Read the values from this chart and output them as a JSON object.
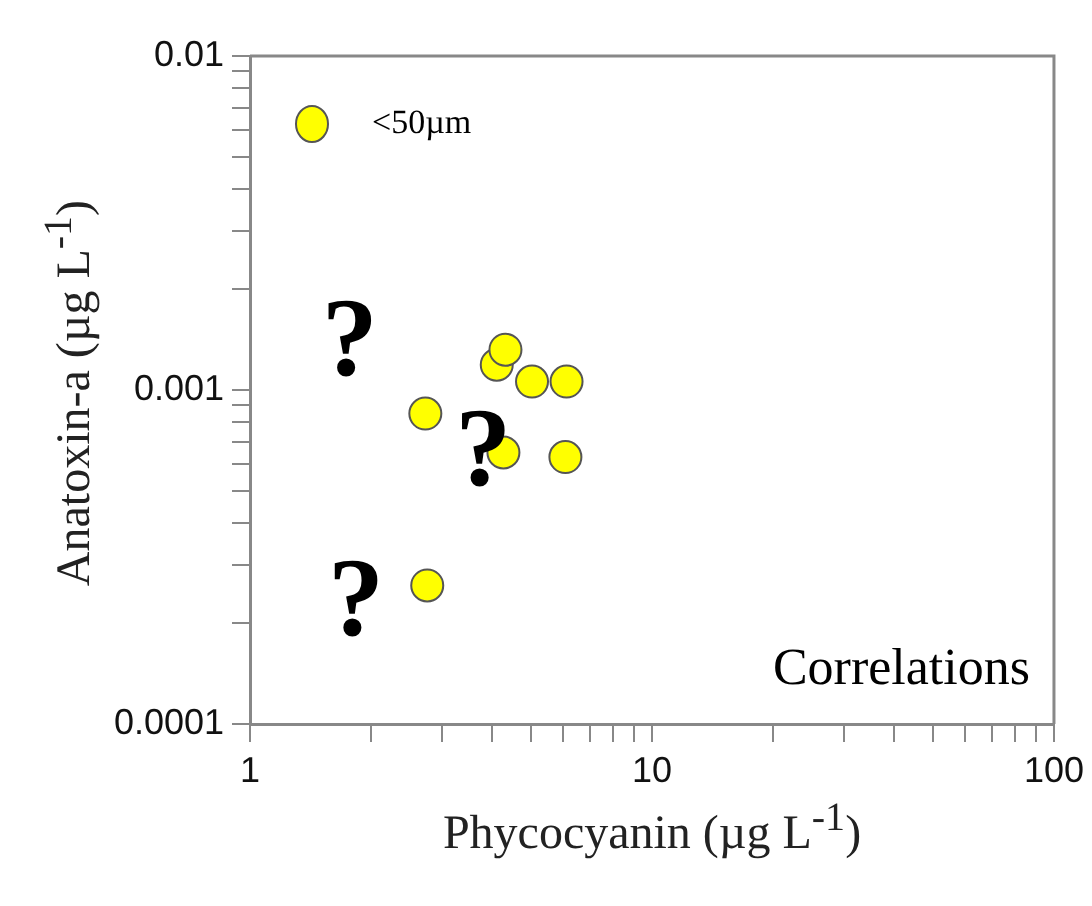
{
  "chart_data": {
    "type": "scatter",
    "xlabel": "Phycocyanin (µg L$^{-1}$)",
    "ylabel": "Anatoxin-a (µg L$^{-1}$)",
    "log": "xy",
    "xlim": [
      1,
      100
    ],
    "ylim": [
      0.0001,
      0.01
    ],
    "xticks": [
      1,
      {
        "value": 2,
        "label": null
      },
      {
        "value": 3,
        "label": null
      },
      {
        "value": 4,
        "label": null
      },
      {
        "value": 5,
        "label": null
      },
      {
        "value": 6,
        "label": null
      },
      {
        "value": 7,
        "label": null
      },
      {
        "value": 8,
        "label": null
      },
      {
        "value": 9,
        "label": null
      },
      10,
      {
        "value": 20,
        "label": null
      },
      {
        "value": 30,
        "label": null
      },
      {
        "value": 40,
        "label": null
      },
      {
        "value": 50,
        "label": null
      },
      {
        "value": 60,
        "label": null
      },
      {
        "value": 70,
        "label": null
      },
      {
        "value": 80,
        "label": null
      },
      {
        "value": 90,
        "label": null
      },
      100
    ],
    "yticks": [
      {
        "value": 0.0001,
        "label": "0.0001"
      },
      {
        "value": 0.0002,
        "label": null
      },
      {
        "value": 0.0003,
        "label": null
      },
      {
        "value": 0.0004,
        "label": null
      },
      {
        "value": 0.0005,
        "label": null
      },
      {
        "value": 0.0006,
        "label": null
      },
      {
        "value": 0.0007,
        "label": null
      },
      {
        "value": 0.0008,
        "label": null
      },
      {
        "value": 0.0009,
        "label": null
      },
      {
        "value": 0.001,
        "label": "0.001"
      },
      {
        "value": 0.002,
        "label": null
      },
      {
        "value": 0.003,
        "label": null
      },
      {
        "value": 0.004,
        "label": null
      },
      {
        "value": 0.005,
        "label": null
      },
      {
        "value": 0.006,
        "label": null
      },
      {
        "value": 0.007,
        "label": null
      },
      {
        "value": 0.008,
        "label": null
      },
      {
        "value": 0.009,
        "label": null
      },
      {
        "value": 0.01,
        "label": "0.01"
      }
    ],
    "series": [
      {
        "name": "<50µm",
        "color": "#ffff00",
        "x": [
          2.73,
          2.76,
          4.11,
          4.32,
          5.03,
          6.13,
          4.27,
          6.09
        ],
        "values": [
          0.00085,
          0.00026,
          0.00119,
          0.00132,
          0.00106,
          0.00106,
          0.00065,
          0.00063
        ]
      }
    ],
    "marker": "circle",
    "grid": false,
    "legend": "top left",
    "annotations": [
      "?",
      "?",
      "?",
      "Correlations"
    ]
  }
}
